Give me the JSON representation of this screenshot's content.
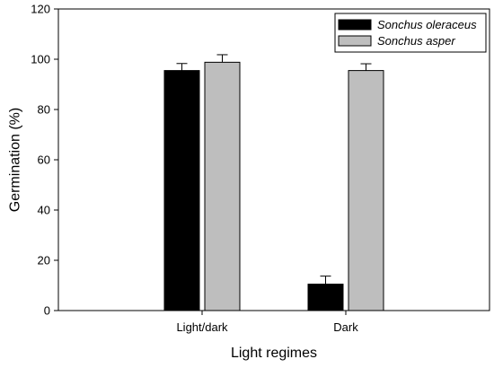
{
  "chart_data": {
    "type": "bar",
    "title": "",
    "xlabel": "Light regimes",
    "ylabel": "Germination (%)",
    "ylim": [
      0,
      120
    ],
    "yticks": [
      0,
      20,
      40,
      60,
      80,
      100,
      120
    ],
    "categories": [
      "Light/dark",
      "Dark"
    ],
    "series": [
      {
        "name": "Sonchus oleraceus",
        "color": "#000000",
        "values": [
          95.5,
          10.5
        ],
        "errors": [
          2.8,
          3.2
        ]
      },
      {
        "name": "Sonchus asper",
        "color": "#bebebe",
        "values": [
          98.8,
          95.5
        ],
        "errors": [
          3.0,
          2.7
        ]
      }
    ],
    "legend": "top-right",
    "grid": false
  }
}
